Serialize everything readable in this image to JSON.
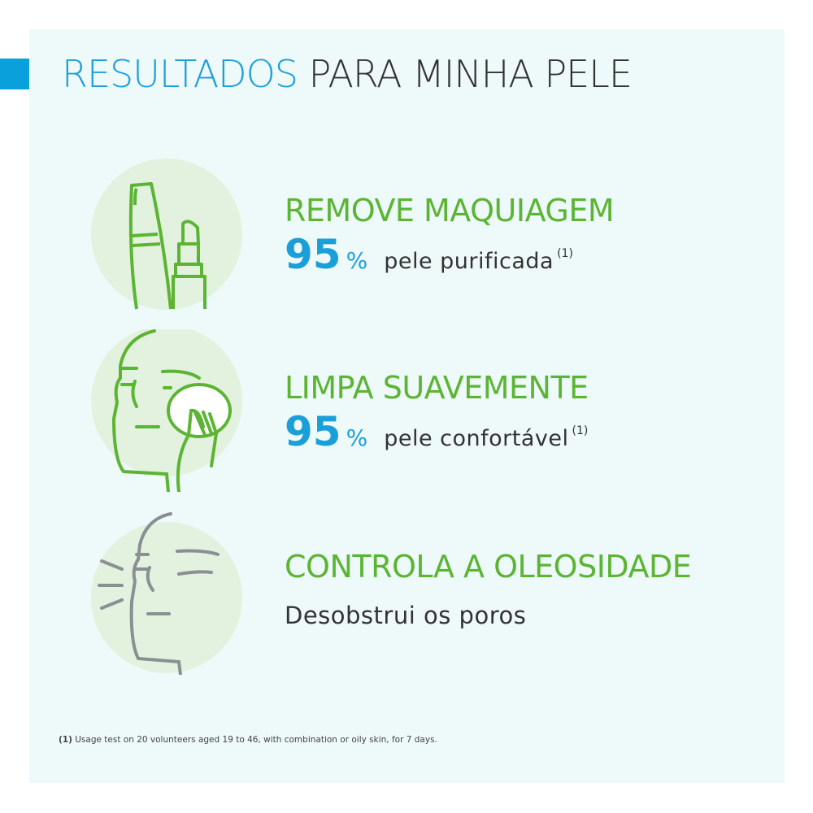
{
  "title": {
    "part1": "RESULTADOS",
    "part2": "PARA MINHA PELE"
  },
  "colors": {
    "blue": "#1b9fd8",
    "green": "#5bb533",
    "panel": "#eef9fa",
    "circle": "#e3f2df",
    "gray": "#8a8f94"
  },
  "features": [
    {
      "icon": "mascara-lipstick-icon",
      "heading": "REMOVE MAQUIAGEM",
      "value": "95",
      "unit": "%",
      "desc": "pele purificada",
      "note": "(1)"
    },
    {
      "icon": "face-cleansing-pad-icon",
      "heading": "LIMPA SUAVEMENTE",
      "value": "95",
      "unit": "%",
      "desc": "pele confortável",
      "note": "(1)"
    },
    {
      "icon": "face-oil-control-icon",
      "heading": "CONTROLA A OLEOSIDADE",
      "desc": "Desobstrui os poros"
    }
  ],
  "footnote": {
    "mark": "(1)",
    "text": "Usage test on 20 volunteers aged 19 to 46, with combination or oily skin, for 7 days."
  }
}
